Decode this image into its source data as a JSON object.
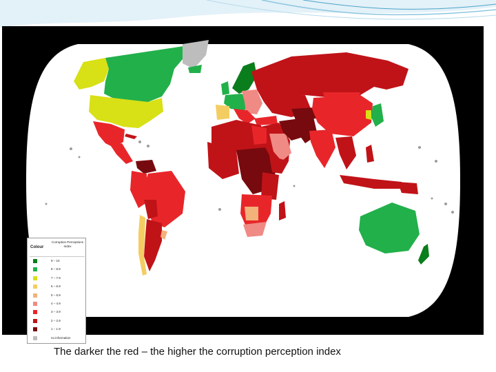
{
  "caption": "The darker the red – the higher the corruption perception index",
  "legend": {
    "header": "Colour",
    "title": "Corruption Perceptions Index",
    "entries": [
      {
        "range": "9 – 10",
        "color": "#0a7d1c"
      },
      {
        "range": "8 – 8.9",
        "color": "#22b04a"
      },
      {
        "range": "7 – 7.9",
        "color": "#d8e016"
      },
      {
        "range": "6 – 6.9",
        "color": "#f4cd62"
      },
      {
        "range": "5 – 5.9",
        "color": "#f2b27a"
      },
      {
        "range": "4 – 4.9",
        "color": "#f08a84"
      },
      {
        "range": "3 – 3.9",
        "color": "#e8262a"
      },
      {
        "range": "2 – 2.9",
        "color": "#c01318"
      },
      {
        "range": "1 – 1.9",
        "color": "#770a0e"
      },
      {
        "range": "no information",
        "color": "#bdbdbd"
      }
    ]
  },
  "colors": {
    "ocean": "#ffffff",
    "background": "#000000",
    "slide_accent": "#4aa3c8"
  }
}
